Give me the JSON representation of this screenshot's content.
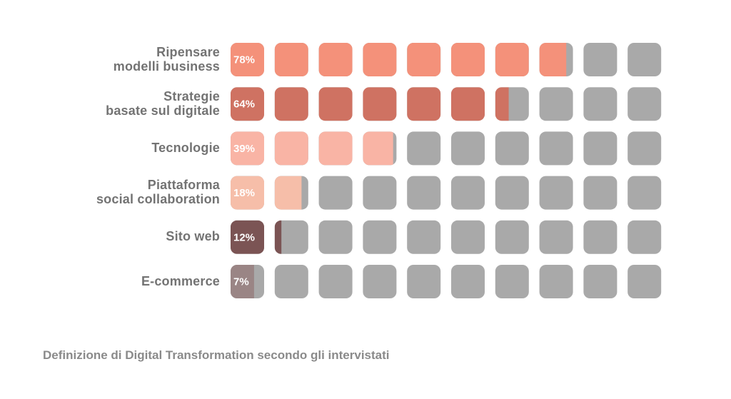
{
  "chart_data": {
    "type": "waffle",
    "categories": [
      "Ripensare\nmodelli business",
      "Strategie\nbasate sul digitale",
      "Tecnologie",
      "Piattaforma\nsocial collaboration",
      "Sito web",
      "E-commerce"
    ],
    "values": [
      78,
      64,
      39,
      18,
      12,
      7
    ],
    "value_labels": [
      "78%",
      "64%",
      "39%",
      "18%",
      "12%",
      "7%"
    ],
    "colors": [
      "#f4917a",
      "#cf7262",
      "#f9b4a5",
      "#f6bea9",
      "#7b5454",
      "#9a8585"
    ],
    "empty_color": "#a9a9a9",
    "units": 10,
    "unit_value": 10,
    "caption": "Definizione di Digital Transformation secondo gli intervistati"
  }
}
